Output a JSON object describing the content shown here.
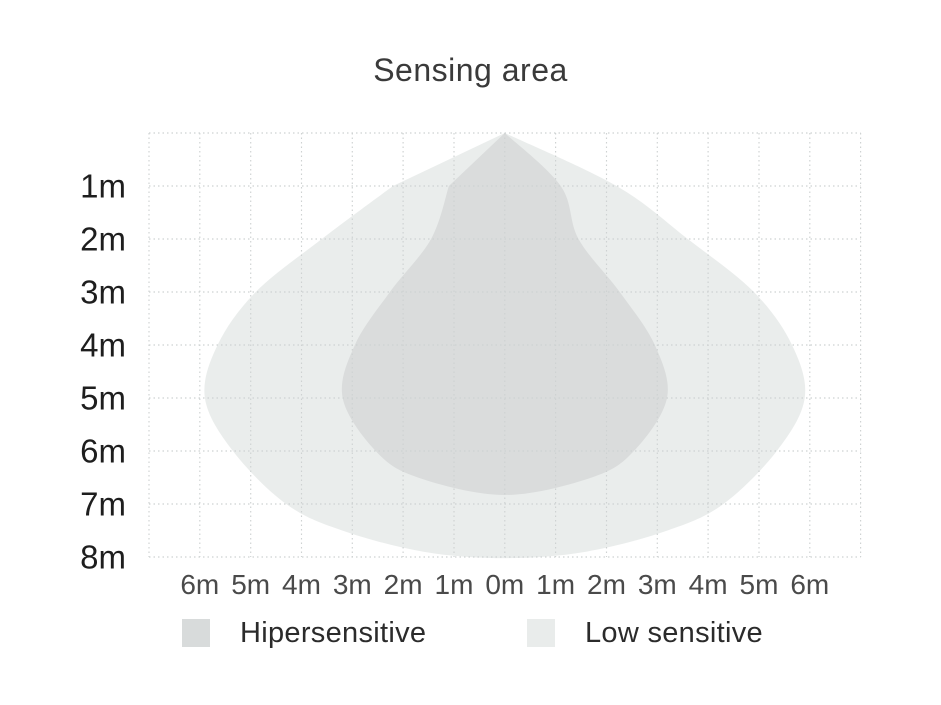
{
  "page": {
    "background": "#ffffff"
  },
  "chart_data": {
    "type": "area",
    "title": "Sensing area",
    "x_ticks": [
      "6m",
      "5m",
      "4m",
      "3m",
      "2m",
      "1m",
      "0m",
      "1m",
      "2m",
      "3m",
      "4m",
      "5m",
      "6m"
    ],
    "y_ticks": [
      "1m",
      "2m",
      "3m",
      "4m",
      "5m",
      "6m",
      "7m",
      "8m"
    ],
    "grid": {
      "style": "dotted",
      "cols": 14,
      "rows": 8,
      "color": "#ced2d2"
    },
    "legend_position": "bottom",
    "series": [
      {
        "name": "Hipersensitive",
        "color": "#d8dbdb",
        "max_depth_m": 6.8,
        "max_half_width_m": 3.2,
        "profile_depth_halfwidth_m": [
          [
            0,
            0
          ],
          [
            1,
            1.1
          ],
          [
            2,
            1.45
          ],
          [
            3,
            2.26
          ],
          [
            4,
            2.95
          ],
          [
            5,
            3.19
          ],
          [
            6,
            2.54
          ],
          [
            6.5,
            1.71
          ],
          [
            6.83,
            0
          ]
        ]
      },
      {
        "name": "Low sensitive",
        "color": "#e9eceb",
        "max_depth_m": 8.0,
        "max_half_width_m": 5.9,
        "profile_depth_halfwidth_m": [
          [
            0,
            0
          ],
          [
            1,
            2.2
          ],
          [
            2,
            3.6
          ],
          [
            3,
            4.9
          ],
          [
            4,
            5.65
          ],
          [
            5,
            5.9
          ],
          [
            6,
            5.35
          ],
          [
            7,
            4.3
          ],
          [
            7.5,
            3.2
          ],
          [
            7.9,
            1.6
          ],
          [
            8.02,
            0
          ]
        ]
      }
    ]
  }
}
